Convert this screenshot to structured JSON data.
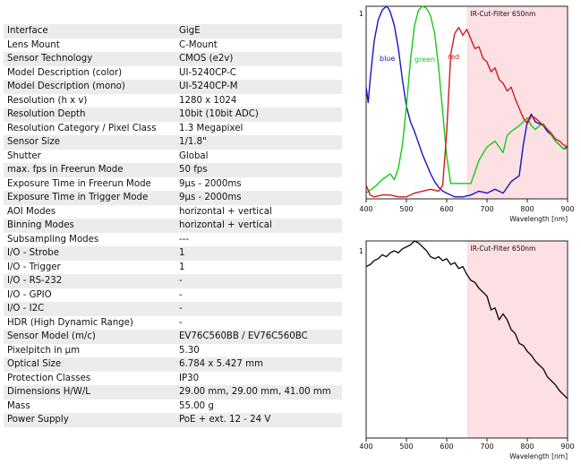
{
  "specs": [
    {
      "label": "Interface",
      "value": "GigE"
    },
    {
      "label": "Lens Mount",
      "value": "C-Mount"
    },
    {
      "label": "Sensor Technology",
      "value": "CMOS (e2v)"
    },
    {
      "label": "Model Description (color)",
      "value": "UI-5240CP-C"
    },
    {
      "label": "Model Description (mono)",
      "value": "UI-5240CP-M"
    },
    {
      "label": "Resolution (h x v)",
      "value": "1280 x 1024"
    },
    {
      "label": "Resolution Depth",
      "value": "10bit (10bit ADC)"
    },
    {
      "label": "Resolution Category / Pixel Class",
      "value": "1.3 Megapixel"
    },
    {
      "label": "Sensor Size",
      "value": "1/1.8\""
    },
    {
      "label": "Shutter",
      "value": "Global"
    },
    {
      "label": "max. fps in Freerun Mode",
      "value": "50 fps"
    },
    {
      "label": "Exposure Time in Freerun Mode",
      "value": "9µs - 2000ms"
    },
    {
      "label": "Exposure Time in Trigger Mode",
      "value": "9µs - 2000ms"
    },
    {
      "label": "AOI Modes",
      "value": "horizontal + vertical"
    },
    {
      "label": "Binning Modes",
      "value": "horizontal + vertical"
    },
    {
      "label": "Subsampling Modes",
      "value": "---"
    },
    {
      "label": "I/O - Strobe",
      "value": "1"
    },
    {
      "label": "I/O - Trigger",
      "value": "1"
    },
    {
      "label": "I/O - RS-232",
      "value": "-"
    },
    {
      "label": "I/O - GPIO",
      "value": "-"
    },
    {
      "label": "I/O - I2C",
      "value": "-"
    },
    {
      "label": "HDR (High Dynamic Range)",
      "value": "-"
    },
    {
      "label": "Sensor Model (m/c)",
      "value": "EV76C560BB / EV76C560BC"
    },
    {
      "label": "Pixelpitch in µm",
      "value": "5.30"
    },
    {
      "label": "Optical Size",
      "value": "6.784 x 5.427 mm"
    },
    {
      "label": "Protection Classes",
      "value": "IP30"
    },
    {
      "label": "Dimensions H/W/L",
      "value": "29.00 mm, 29.00 mm, 41.00 mm"
    },
    {
      "label": "Mass",
      "value": "55.00 g"
    },
    {
      "label": "Power Supply",
      "value": "PoE + ext. 12 - 24 V"
    }
  ],
  "chart_data": [
    {
      "type": "line",
      "xlabel": "Wavelength [nm]",
      "xlim": [
        400,
        900
      ],
      "ylim": [
        0,
        1
      ],
      "x_ticks": [
        "400",
        "500",
        "600",
        "700",
        "800",
        "900"
      ],
      "y_ticks": [
        "1"
      ],
      "annotation": "IR-Cut-Filter 650nm",
      "shaded_from": 650,
      "colors": {
        "blue": "#1515c8",
        "green": "#14cc14",
        "red": "#d41a1a",
        "shade": "#fce0e4"
      },
      "series": [
        {
          "name": "blue",
          "color": "#1515c8",
          "x": [
            400,
            405,
            410,
            420,
            430,
            440,
            450,
            455,
            460,
            470,
            480,
            490,
            500,
            510,
            520,
            530,
            540,
            550,
            560,
            570,
            580,
            590,
            600,
            610,
            620,
            640,
            660,
            680,
            700,
            720,
            740,
            760,
            780,
            790,
            800,
            810,
            820,
            830,
            840,
            850,
            860,
            870,
            880,
            890,
            900
          ],
          "y": [
            0.58,
            0.5,
            0.62,
            0.82,
            0.93,
            0.98,
            1.0,
            0.99,
            0.97,
            0.9,
            0.78,
            0.62,
            0.48,
            0.4,
            0.35,
            0.29,
            0.23,
            0.18,
            0.13,
            0.09,
            0.06,
            0.04,
            0.03,
            0.02,
            0.01,
            0.01,
            0.02,
            0.04,
            0.03,
            0.05,
            0.03,
            0.09,
            0.12,
            0.28,
            0.4,
            0.44,
            0.4,
            0.39,
            0.38,
            0.35,
            0.33,
            0.3,
            0.28,
            0.26,
            0.27
          ]
        },
        {
          "name": "green",
          "color": "#14cc14",
          "x": [
            400,
            420,
            440,
            460,
            470,
            480,
            490,
            500,
            510,
            520,
            530,
            540,
            550,
            560,
            570,
            580,
            590,
            600,
            610,
            620,
            640,
            660,
            680,
            700,
            720,
            740,
            750,
            760,
            780,
            790,
            800,
            810,
            820,
            830,
            840,
            850,
            860,
            870,
            880,
            890,
            900
          ],
          "y": [
            0.03,
            0.06,
            0.1,
            0.13,
            0.1,
            0.16,
            0.28,
            0.48,
            0.72,
            0.9,
            0.98,
            1.0,
            0.99,
            0.95,
            0.86,
            0.68,
            0.45,
            0.22,
            0.08,
            0.08,
            0.08,
            0.08,
            0.2,
            0.27,
            0.3,
            0.24,
            0.33,
            0.35,
            0.38,
            0.4,
            0.42,
            0.38,
            0.36,
            0.38,
            0.39,
            0.36,
            0.33,
            0.3,
            0.28,
            0.26,
            0.26
          ]
        },
        {
          "name": "red",
          "color": "#d41a1a",
          "x": [
            400,
            410,
            420,
            440,
            460,
            480,
            500,
            520,
            540,
            560,
            580,
            590,
            600,
            610,
            620,
            630,
            640,
            650,
            660,
            670,
            680,
            690,
            700,
            710,
            720,
            730,
            740,
            750,
            760,
            770,
            780,
            790,
            800,
            810,
            820,
            830,
            840,
            850,
            860,
            870,
            880,
            890,
            900
          ],
          "y": [
            0.07,
            0.02,
            0.01,
            0.02,
            0.02,
            0.01,
            0.01,
            0.03,
            0.04,
            0.05,
            0.04,
            0.07,
            0.35,
            0.75,
            0.86,
            0.89,
            0.85,
            0.88,
            0.83,
            0.78,
            0.79,
            0.73,
            0.71,
            0.66,
            0.68,
            0.62,
            0.6,
            0.56,
            0.58,
            0.52,
            0.47,
            0.42,
            0.39,
            0.43,
            0.42,
            0.4,
            0.38,
            0.36,
            0.34,
            0.31,
            0.3,
            0.28,
            0.27
          ]
        }
      ]
    },
    {
      "type": "line",
      "xlabel": "Wavelength [nm]",
      "xlim": [
        400,
        900
      ],
      "ylim": [
        0,
        1
      ],
      "x_ticks": [
        "400",
        "500",
        "600",
        "700",
        "800",
        "900"
      ],
      "y_ticks": [
        "1"
      ],
      "annotation": "IR-Cut-Filter 650nm",
      "shaded_from": 650,
      "colors": {
        "line": "#111111",
        "shade": "#fce0e4"
      },
      "series": [
        {
          "color": "#111111",
          "x": [
            400,
            410,
            420,
            430,
            440,
            450,
            460,
            470,
            480,
            490,
            500,
            510,
            520,
            530,
            540,
            550,
            560,
            570,
            580,
            590,
            600,
            610,
            620,
            630,
            640,
            650,
            660,
            670,
            680,
            690,
            700,
            710,
            720,
            730,
            740,
            750,
            760,
            770,
            780,
            790,
            800,
            810,
            820,
            830,
            840,
            850,
            860,
            870,
            880,
            890,
            900
          ],
          "y": [
            0.87,
            0.88,
            0.9,
            0.91,
            0.93,
            0.92,
            0.94,
            0.95,
            0.94,
            0.96,
            0.97,
            0.98,
            1.0,
            0.99,
            0.97,
            0.95,
            0.92,
            0.91,
            0.92,
            0.9,
            0.91,
            0.88,
            0.89,
            0.86,
            0.87,
            0.83,
            0.8,
            0.79,
            0.76,
            0.74,
            0.72,
            0.65,
            0.66,
            0.6,
            0.63,
            0.6,
            0.55,
            0.53,
            0.48,
            0.47,
            0.44,
            0.42,
            0.39,
            0.37,
            0.35,
            0.31,
            0.29,
            0.27,
            0.24,
            0.22,
            0.2
          ]
        }
      ]
    }
  ]
}
